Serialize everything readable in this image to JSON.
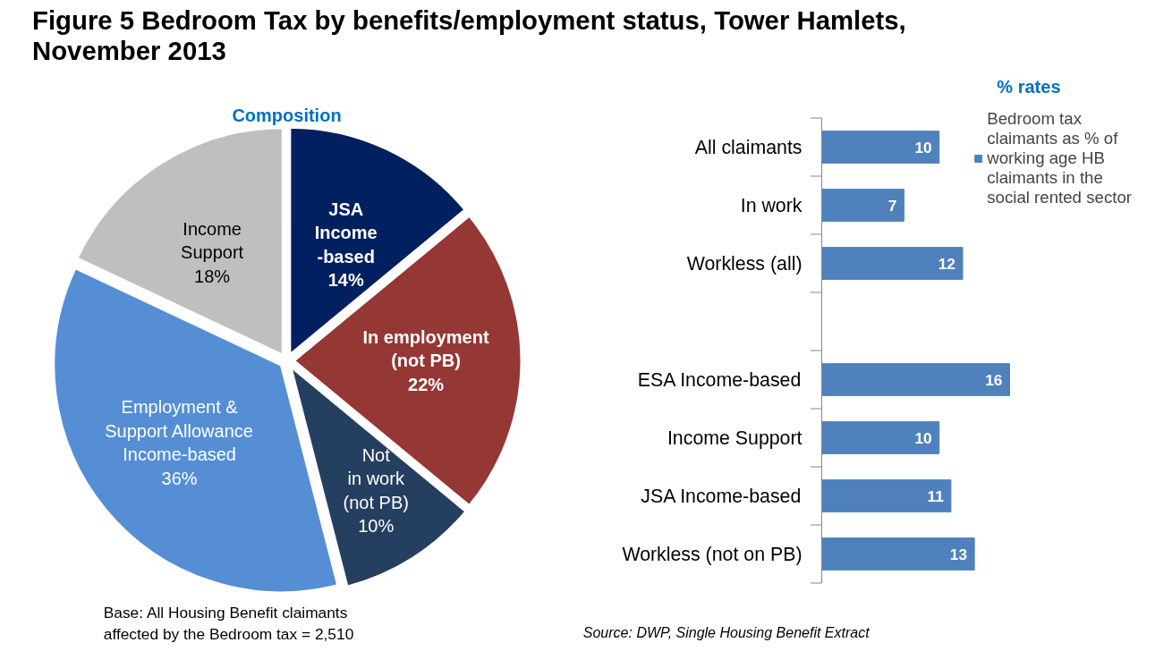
{
  "chart_data": [
    {
      "type": "pie",
      "title": "Figure 5  Bedroom Tax by benefits/employment status, Tower Hamlets, November 2013",
      "subtitle": "Composition",
      "categories": [
        "JSA\nIncome\n-based",
        "In employment\n(not PB)",
        "Not\nin work\n(not PB)",
        "Employment &\nSupport Allowance\nIncome-based",
        "Income\nSupport"
      ],
      "values": [
        14,
        22,
        10,
        36,
        18
      ],
      "colors": [
        "#002060",
        "#953735",
        "#243f60",
        "#558ed5",
        "#bfbfbf"
      ],
      "value_labels": [
        "14%",
        "22%",
        "10%",
        "36%",
        "18%"
      ],
      "annotations": [
        "Base: All Housing Benefit claimants\naffected by the Bedroom tax = 2,510"
      ]
    },
    {
      "type": "bar",
      "orientation": "horizontal",
      "title": "% rates",
      "categories": [
        "All claimants",
        "In work",
        "Workless (all)",
        null,
        "ESA Income-based",
        "Income Support",
        "JSA Income-based",
        "Workless (not on PB)"
      ],
      "series": [
        {
          "name": "Bedroom tax claimants as % of working age HB claimants in the social rented sector",
          "color": "#4f81bd",
          "values": [
            10,
            7,
            12,
            null,
            16,
            10,
            11,
            13
          ]
        }
      ],
      "data_labels": true,
      "legend": "top right",
      "annotations": [
        "Source: DWP, Single Housing Benefit Extract"
      ]
    }
  ]
}
